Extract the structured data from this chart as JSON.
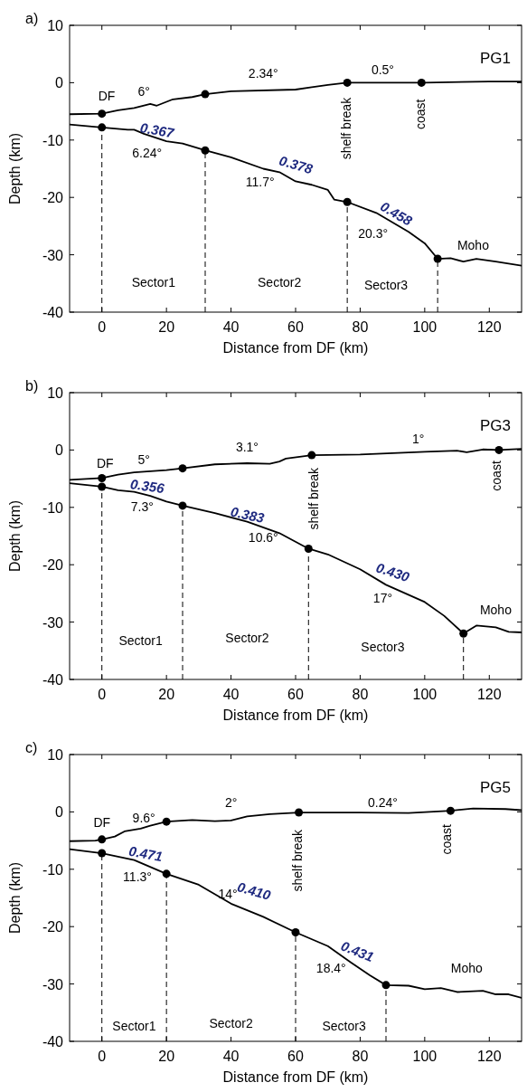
{
  "chart_data": [
    {
      "type": "line",
      "title": "PG1",
      "xlabel": "Distance from DF (km)",
      "ylabel": "Depth (km)",
      "xlim": [
        -10,
        130
      ],
      "xticks": [
        0,
        20,
        40,
        60,
        80,
        100,
        120
      ],
      "ylim": [
        -40,
        10
      ],
      "yticks": [
        -40,
        -30,
        -20,
        -10,
        0,
        10
      ],
      "grid": false,
      "line_style": "solid",
      "series": [
        {
          "color": "#000000",
          "x": [
            -10,
            0,
            5,
            10,
            15,
            17,
            22,
            28,
            32,
            40,
            60,
            65,
            70,
            76,
            100,
            120,
            130
          ],
          "values": [
            -5.5,
            -5.4,
            -4.8,
            -4.4,
            -3.7,
            -4,
            -2.9,
            -2.5,
            -2,
            -1.5,
            -1.2,
            -0.8,
            -0.4,
            0,
            0,
            0.2,
            0.2
          ]
        },
        {
          "color": "#000000",
          "x": [
            -10,
            0,
            8,
            10,
            13,
            20,
            25,
            32,
            40,
            50,
            55,
            60,
            65,
            70,
            72,
            76,
            85,
            95,
            100,
            104,
            108,
            112,
            116,
            122,
            130
          ],
          "values": [
            -7.3,
            -7.8,
            -8.2,
            -8.2,
            -8.9,
            -10.2,
            -10.6,
            -11.8,
            -13,
            -15,
            -15.6,
            -17.2,
            -17.8,
            -18.7,
            -20.4,
            -20.8,
            -22.7,
            -26,
            -28,
            -30.7,
            -30.6,
            -31.2,
            -30.7,
            -31.2,
            -31.9
          ]
        },
        {
          "type": "scatter",
          "marker": "circle",
          "color": "#000000",
          "x": [
            0,
            32,
            76,
            99,
            0,
            32,
            76,
            104
          ],
          "values": [
            -5.4,
            -2,
            0,
            0,
            -7.8,
            -11.8,
            -20.8,
            -30.7
          ]
        }
      ],
      "ref_lines": [
        {
          "axis": "x",
          "value": 0,
          "line_style": "dashed"
        },
        {
          "axis": "x",
          "value": 32,
          "line_style": "dashed"
        },
        {
          "axis": "x",
          "value": 76,
          "line_style": "dashed"
        },
        {
          "axis": "x",
          "value": 104,
          "line_style": "dashed"
        }
      ],
      "annotations": [
        "a)",
        "DF",
        "6°",
        "2.34°",
        "0.5°",
        "shelf break",
        "coast",
        "0.367",
        "6.24°",
        "0.378",
        "11.7°",
        "0.458",
        "20.3°",
        "Moho",
        "Sector1",
        "Sector2",
        "Sector3"
      ]
    },
    {
      "type": "line",
      "title": "PG3",
      "xlabel": "Distance from DF (km)",
      "ylabel": "Depth (km)",
      "xlim": [
        -10,
        130
      ],
      "xticks": [
        0,
        20,
        40,
        60,
        80,
        100,
        120
      ],
      "ylim": [
        -40,
        10
      ],
      "yticks": [
        -40,
        -30,
        -20,
        -10,
        0,
        10
      ],
      "grid": false,
      "line_style": "solid",
      "series": [
        {
          "color": "#000000",
          "x": [
            -10,
            0,
            5,
            10,
            20,
            25,
            35,
            45,
            52,
            55,
            57,
            65,
            80,
            100,
            110,
            113,
            118,
            123,
            130
          ],
          "values": [
            -5.2,
            -4.9,
            -4.3,
            -3.9,
            -3.5,
            -3.2,
            -2.5,
            -2.3,
            -2.4,
            -2,
            -1.5,
            -0.9,
            -0.8,
            -0.3,
            -0.1,
            -0.4,
            0.1,
            0,
            0.2
          ]
        },
        {
          "color": "#000000",
          "x": [
            -10,
            0,
            5,
            10,
            15,
            20,
            25,
            35,
            45,
            55,
            64,
            70,
            80,
            88,
            100,
            106,
            112,
            116,
            122,
            126,
            130
          ],
          "values": [
            -5.8,
            -6.4,
            -7,
            -7.3,
            -8,
            -9,
            -9.7,
            -11,
            -12.5,
            -14.5,
            -17.2,
            -18.2,
            -20.8,
            -23.5,
            -26.5,
            -28.9,
            -32,
            -30.6,
            -30.9,
            -31.7,
            -31.8
          ]
        },
        {
          "type": "scatter",
          "marker": "circle",
          "color": "#000000",
          "x": [
            0,
            25,
            65,
            123,
            0,
            25,
            64,
            112
          ],
          "values": [
            -4.9,
            -3.2,
            -0.9,
            0,
            -6.4,
            -9.7,
            -17.2,
            -32
          ]
        }
      ],
      "ref_lines": [
        {
          "axis": "x",
          "value": 0,
          "line_style": "dashed"
        },
        {
          "axis": "x",
          "value": 25,
          "line_style": "dashed"
        },
        {
          "axis": "x",
          "value": 64,
          "line_style": "dashed"
        },
        {
          "axis": "x",
          "value": 112,
          "line_style": "dashed"
        }
      ],
      "annotations": [
        "b)",
        "DF",
        "5°",
        "3.1°",
        "1°",
        "shelf break",
        "coast",
        "0.356",
        "7.3°",
        "0.383",
        "10.6°",
        "0.430",
        "17°",
        "Moho",
        "Sector1",
        "Sector2",
        "Sector3"
      ]
    },
    {
      "type": "line",
      "title": "PG5",
      "xlabel": "Distance from DF (km)",
      "ylabel": "Depth (km)",
      "xlim": [
        -10,
        130
      ],
      "xticks": [
        0,
        20,
        40,
        60,
        80,
        100,
        120
      ],
      "ylim": [
        -40,
        10
      ],
      "yticks": [
        -40,
        -30,
        -20,
        -10,
        0,
        10
      ],
      "grid": false,
      "line_style": "solid",
      "series": [
        {
          "color": "#000000",
          "x": [
            -10,
            -2,
            0,
            4,
            7,
            12,
            15,
            20,
            28,
            35,
            40,
            45,
            52,
            61,
            80,
            95,
            108,
            115,
            125,
            130
          ],
          "values": [
            -5.1,
            -5,
            -4.8,
            -4.3,
            -3.4,
            -2.9,
            -2.4,
            -1.7,
            -1.4,
            -1.6,
            -1.5,
            -0.8,
            -0.4,
            -0.1,
            -0.1,
            -0.2,
            0.2,
            0.6,
            0.5,
            0.3
          ]
        },
        {
          "color": "#000000",
          "x": [
            -10,
            0,
            10,
            20,
            30,
            40,
            50,
            60,
            70,
            77,
            83,
            88,
            95,
            100,
            105,
            110,
            118,
            122,
            126,
            130
          ],
          "values": [
            -6.5,
            -7.2,
            -8.4,
            -10.8,
            -12.7,
            -16,
            -18.3,
            -21,
            -23.4,
            -26.2,
            -28.5,
            -30.2,
            -30.3,
            -30.9,
            -30.7,
            -31.4,
            -31.2,
            -31.8,
            -31.8,
            -32.4
          ]
        },
        {
          "type": "scatter",
          "marker": "circle",
          "color": "#000000",
          "x": [
            0,
            20,
            61,
            108,
            0,
            20,
            60,
            88
          ],
          "values": [
            -4.8,
            -1.7,
            -0.1,
            0.2,
            -7.2,
            -10.8,
            -21,
            -30.2
          ]
        }
      ],
      "ref_lines": [
        {
          "axis": "x",
          "value": 0,
          "line_style": "dashed"
        },
        {
          "axis": "x",
          "value": 20,
          "line_style": "dashed"
        },
        {
          "axis": "x",
          "value": 60,
          "line_style": "dashed"
        },
        {
          "axis": "x",
          "value": 88,
          "line_style": "dashed"
        }
      ],
      "annotations": [
        "c)",
        "DF",
        "9.6°",
        "2°",
        "0.24°",
        "shelf break",
        "coast",
        "0.471",
        "11.3°",
        "0.410",
        "14°",
        "0.431",
        "18.4°",
        "Moho",
        "Sector1",
        "Sector2",
        "Sector3"
      ]
    }
  ]
}
